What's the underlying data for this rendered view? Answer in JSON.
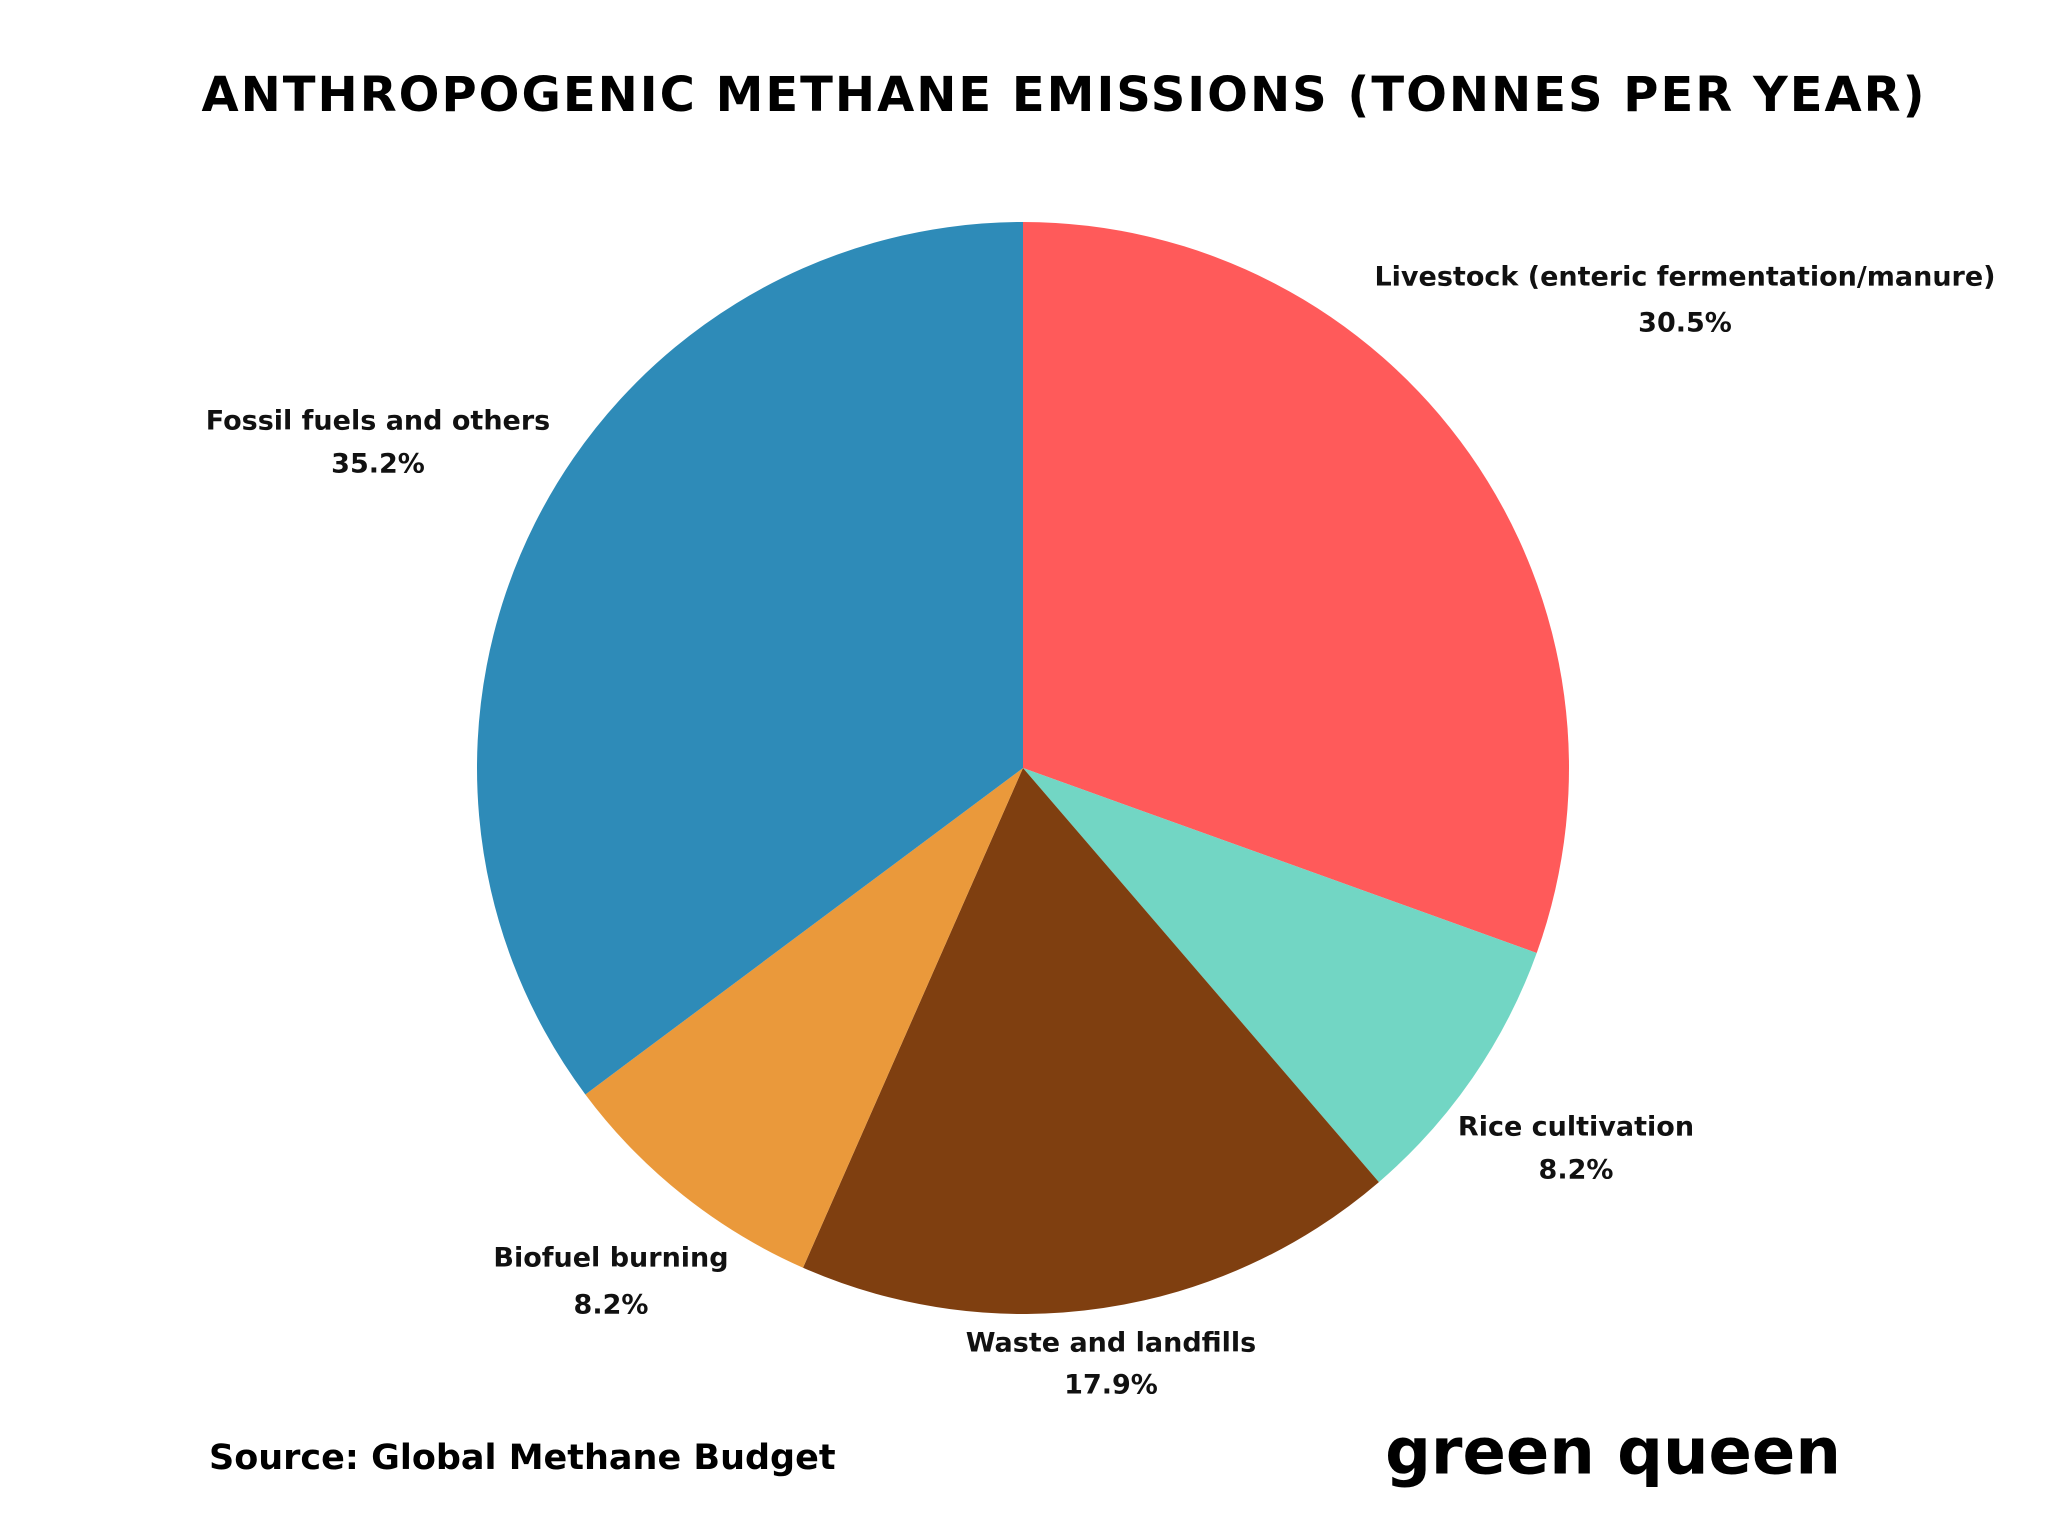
{
  "chart_data": {
    "type": "pie",
    "title": "ANTHROPOGENIC METHANE EMISSIONS (TONNES PER YEAR)",
    "categories": [
      "Livestock (enteric fermentation/manure)",
      "Rice cultivation",
      "Waste and landfills",
      "Biofuel burning",
      "Fossil fuels and others"
    ],
    "values": [
      30.5,
      8.2,
      17.9,
      8.2,
      35.2
    ],
    "value_labels": [
      "30.5%",
      "8.2%",
      "17.9%",
      "8.2%",
      "35.2%"
    ],
    "colors": [
      "#ff5a5a",
      "#72d6c4",
      "#7f3f10",
      "#ea993b",
      "#2e8bb8"
    ],
    "source": "Source: Global Methane Budget",
    "brand": "green queen"
  }
}
